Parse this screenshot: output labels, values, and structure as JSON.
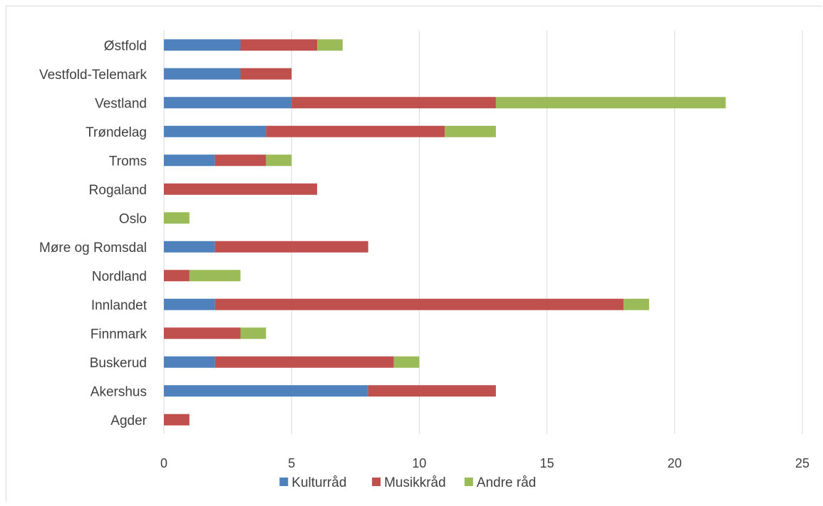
{
  "chart_data": {
    "type": "bar",
    "orientation": "horizontal",
    "stacked": true,
    "title": "",
    "xlabel": "",
    "ylabel": "",
    "categories": [
      "Østfold",
      "Vestfold-Telemark",
      "Vestland",
      "Trøndelag",
      "Troms",
      "Rogaland",
      "Oslo",
      "Møre og Romsdal",
      "Nordland",
      "Innlandet",
      "Finnmark",
      "Buskerud",
      "Akershus",
      "Agder"
    ],
    "series": [
      {
        "name": "Kulturråd",
        "color": "#4f81bd",
        "values": [
          3,
          3,
          5,
          4,
          2,
          0,
          0,
          2,
          0,
          2,
          0,
          2,
          8,
          0
        ]
      },
      {
        "name": "Musikkråd",
        "color": "#c0504d",
        "values": [
          3,
          2,
          8,
          7,
          2,
          6,
          0,
          6,
          1,
          16,
          3,
          7,
          5,
          1
        ]
      },
      {
        "name": "Andre råd",
        "color": "#9bbb59",
        "values": [
          1,
          0,
          9,
          2,
          1,
          0,
          1,
          0,
          2,
          1,
          1,
          1,
          0,
          0
        ]
      }
    ],
    "xlim": [
      0,
      25
    ],
    "xticks": [
      "0",
      "5",
      "10",
      "15",
      "20",
      "25"
    ],
    "grid": "vertical",
    "legend": "bottom"
  }
}
